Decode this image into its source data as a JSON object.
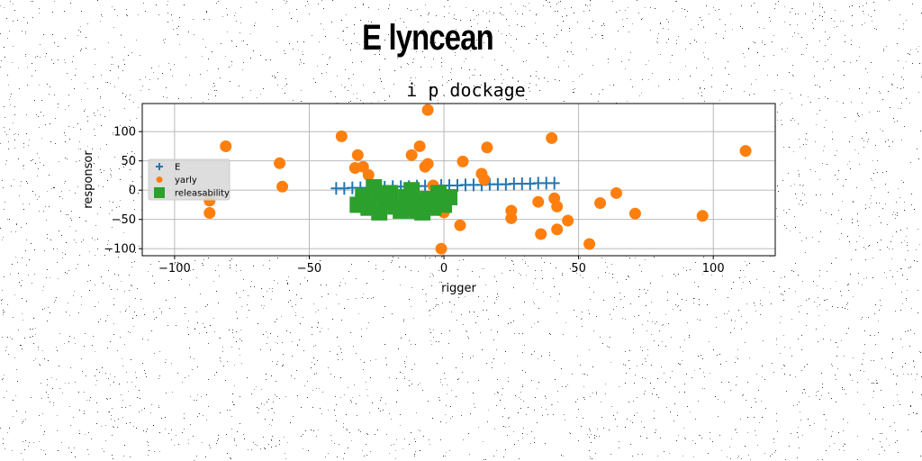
{
  "page_title": "E lyncean",
  "chart_data": {
    "type": "scatter",
    "title": "i p dockage",
    "xlabel": "rigger",
    "ylabel": "responsor",
    "xlim": [
      -112,
      123
    ],
    "ylim": [
      -112,
      148
    ],
    "xticks": [
      -100,
      -50,
      0,
      50,
      100
    ],
    "yticks": [
      -100,
      -50,
      0,
      50,
      100
    ],
    "xtick_labels": [
      "−100",
      "−50",
      "0",
      "50",
      "100"
    ],
    "ytick_labels": [
      "−100",
      "−50",
      "0",
      "50",
      "100"
    ],
    "grid": true,
    "legend_position": "center-left",
    "colors": {
      "E": "#1f77b4",
      "yarly": "#ff7f0e",
      "releasability": "#2ca02c"
    },
    "series": [
      {
        "name": "E",
        "marker": "plus",
        "points": [
          [
            -40,
            3
          ],
          [
            -37,
            3
          ],
          [
            -34,
            4
          ],
          [
            -31,
            4
          ],
          [
            -28,
            4
          ],
          [
            -25,
            5
          ],
          [
            -22,
            5
          ],
          [
            -19,
            6
          ],
          [
            -16,
            6
          ],
          [
            -13,
            6
          ],
          [
            -10,
            7
          ],
          [
            -7,
            7
          ],
          [
            -4,
            7
          ],
          [
            -1,
            8
          ],
          [
            2,
            8
          ],
          [
            5,
            8
          ],
          [
            8,
            9
          ],
          [
            11,
            9
          ],
          [
            14,
            9
          ],
          [
            17,
            10
          ],
          [
            20,
            10
          ],
          [
            23,
            10
          ],
          [
            26,
            11
          ],
          [
            29,
            11
          ],
          [
            32,
            11
          ],
          [
            35,
            12
          ],
          [
            38,
            12
          ],
          [
            41,
            12
          ]
        ]
      },
      {
        "name": "yarly",
        "marker": "circle",
        "points": [
          [
            -87,
            -18
          ],
          [
            -87,
            -39
          ],
          [
            -81,
            75
          ],
          [
            -61,
            46
          ],
          [
            -60,
            6
          ],
          [
            -38,
            92
          ],
          [
            -33,
            38
          ],
          [
            -32,
            60
          ],
          [
            -30,
            40
          ],
          [
            -28,
            26
          ],
          [
            -12,
            60
          ],
          [
            -9,
            75
          ],
          [
            -7,
            40
          ],
          [
            -6,
            45
          ],
          [
            -6,
            137
          ],
          [
            -4,
            8
          ],
          [
            0,
            -38
          ],
          [
            -1,
            -100
          ],
          [
            6,
            -60
          ],
          [
            7,
            49
          ],
          [
            14,
            28
          ],
          [
            15,
            18
          ],
          [
            16,
            73
          ],
          [
            25,
            -35
          ],
          [
            25,
            -48
          ],
          [
            35,
            -20
          ],
          [
            36,
            -75
          ],
          [
            40,
            89
          ],
          [
            41,
            -14
          ],
          [
            42,
            -28
          ],
          [
            42,
            -67
          ],
          [
            46,
            -52
          ],
          [
            54,
            -92
          ],
          [
            58,
            -22
          ],
          [
            64,
            -5
          ],
          [
            71,
            -40
          ],
          [
            96,
            -44
          ],
          [
            112,
            67
          ]
        ]
      },
      {
        "name": "releasability",
        "marker": "square",
        "points": [
          [
            -32,
            -25
          ],
          [
            -30,
            -10
          ],
          [
            -28,
            -30
          ],
          [
            -26,
            5
          ],
          [
            -24,
            -38
          ],
          [
            -22,
            -20
          ],
          [
            -20,
            -5
          ],
          [
            -18,
            -28
          ],
          [
            -16,
            -35
          ],
          [
            -14,
            -12
          ],
          [
            -12,
            0
          ],
          [
            -10,
            -22
          ],
          [
            -8,
            -38
          ],
          [
            -6,
            -15
          ],
          [
            -4,
            -30
          ],
          [
            -2,
            -5
          ],
          [
            0,
            -25
          ],
          [
            2,
            -12
          ],
          [
            -30,
            -20
          ],
          [
            -20,
            -15
          ],
          [
            -14,
            -30
          ],
          [
            -6,
            -25
          ],
          [
            -24,
            -8
          ],
          [
            -10,
            -35
          ]
        ]
      }
    ]
  }
}
